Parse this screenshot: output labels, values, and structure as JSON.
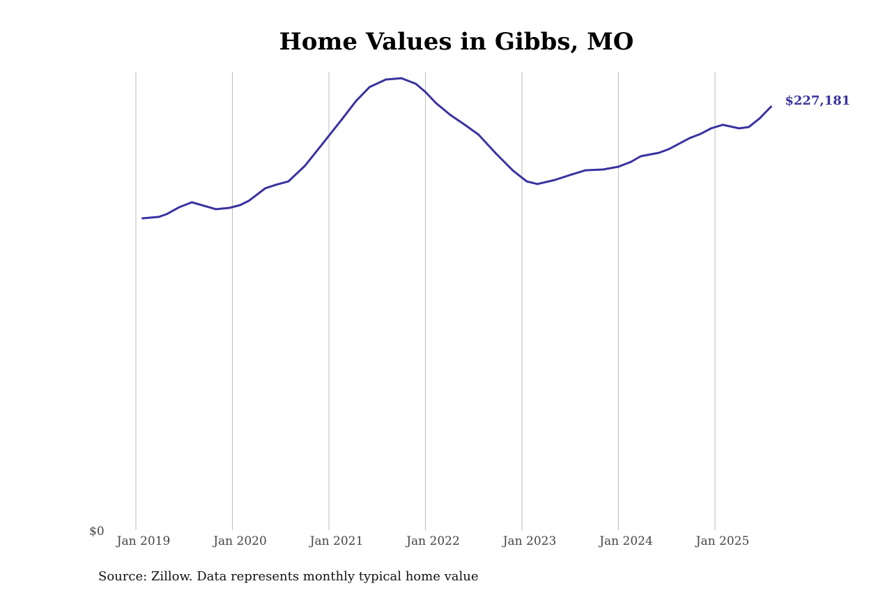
{
  "chart_data": {
    "type": "line",
    "title": "Home Values in Gibbs, MO",
    "xlabel": "",
    "ylabel": "",
    "source": "Source: Zillow. Data represents monthly typical home value",
    "x_tick_labels": [
      "Jan 2019",
      "Jan 2020",
      "Jan 2021",
      "Jan 2022",
      "Jan 2023",
      "Jan 2024",
      "Jan 2025"
    ],
    "x_ticks": [
      2019,
      2020,
      2021,
      2022,
      2023,
      2024,
      2025
    ],
    "y_tick_labels": [
      "$0"
    ],
    "y_ticks": [
      0
    ],
    "xlim": [
      2018.68,
      2026.0
    ],
    "ylim": [
      0,
      245900
    ],
    "grid": "vertical",
    "color": "#3a32a0",
    "end_label": "$227,181",
    "series": [
      {
        "name": "Typical home value",
        "x": [
          2019.07,
          2019.24,
          2019.32,
          2019.45,
          2019.58,
          2019.7,
          2019.83,
          2019.97,
          2020.08,
          2020.17,
          2020.34,
          2020.45,
          2020.58,
          2020.75,
          2020.94,
          2021.14,
          2021.28,
          2021.42,
          2021.59,
          2021.75,
          2021.9,
          2022.0,
          2022.11,
          2022.26,
          2022.4,
          2022.55,
          2022.73,
          2022.91,
          2023.05,
          2023.16,
          2023.34,
          2023.52,
          2023.66,
          2023.84,
          2024.0,
          2024.13,
          2024.23,
          2024.42,
          2024.52,
          2024.74,
          2024.85,
          2024.96,
          2025.08,
          2025.25,
          2025.35,
          2025.46,
          2025.58
        ],
        "values": [
          167300,
          168100,
          169600,
          173300,
          175900,
          174100,
          172200,
          172900,
          174400,
          176700,
          183400,
          185300,
          187100,
          195400,
          207700,
          220800,
          230200,
          237700,
          241800,
          242500,
          239500,
          235100,
          229100,
          222700,
          217800,
          212200,
          202100,
          192800,
          187100,
          185700,
          187900,
          190900,
          193100,
          193500,
          195000,
          197600,
          200600,
          202500,
          204400,
          210400,
          212600,
          215600,
          217500,
          215600,
          216300,
          220800,
          227181
        ]
      }
    ]
  }
}
